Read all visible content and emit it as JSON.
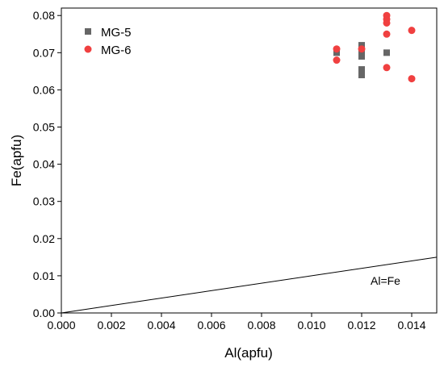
{
  "chart_data": {
    "type": "scatter",
    "title": "",
    "xlabel": "Al(apfu)",
    "ylabel": "Fe(apfu)",
    "xlim": [
      0,
      0.015
    ],
    "ylim": [
      0,
      0.082
    ],
    "xticks": [
      "0.000",
      "0.002",
      "0.004",
      "0.006",
      "0.008",
      "0.010",
      "0.012",
      "0.014"
    ],
    "yticks": [
      "0.00",
      "0.01",
      "0.02",
      "0.03",
      "0.04",
      "0.05",
      "0.06",
      "0.07",
      "0.08"
    ],
    "grid": false,
    "legend_position": "top-left",
    "series": [
      {
        "name": "MG-5",
        "marker": "square",
        "color": "#666666",
        "points": [
          [
            0.011,
            0.07
          ],
          [
            0.012,
            0.072
          ],
          [
            0.012,
            0.07
          ],
          [
            0.012,
            0.069
          ],
          [
            0.012,
            0.0655
          ],
          [
            0.012,
            0.064
          ],
          [
            0.013,
            0.07
          ]
        ]
      },
      {
        "name": "MG-6",
        "marker": "circle",
        "color": "#f04040",
        "points": [
          [
            0.011,
            0.071
          ],
          [
            0.011,
            0.068
          ],
          [
            0.012,
            0.071
          ],
          [
            0.013,
            0.08
          ],
          [
            0.013,
            0.079
          ],
          [
            0.013,
            0.078
          ],
          [
            0.013,
            0.075
          ],
          [
            0.013,
            0.066
          ],
          [
            0.014,
            0.076
          ],
          [
            0.014,
            0.063
          ]
        ]
      }
    ],
    "reference_line": {
      "label": "Al=Fe",
      "x": [
        0,
        0.015
      ],
      "y": [
        0,
        0.015
      ]
    }
  }
}
